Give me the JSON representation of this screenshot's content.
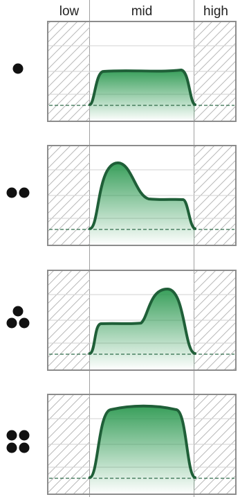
{
  "columns": [
    {
      "label": "low"
    },
    {
      "label": "mid"
    },
    {
      "label": "high"
    }
  ],
  "colors": {
    "curve_stroke": "#1f5f38",
    "fill_top": "#2e9a52",
    "hatch": "#b9b9b9",
    "frame": "#8c8c8c",
    "baseline": "#2f6b49",
    "dot": "#111111"
  },
  "panels": [
    {
      "dots": 1,
      "shape": "flat"
    },
    {
      "dots": 2,
      "shape": "left-peak"
    },
    {
      "dots": 3,
      "shape": "right-peak"
    },
    {
      "dots": 4,
      "shape": "broad"
    }
  ]
}
